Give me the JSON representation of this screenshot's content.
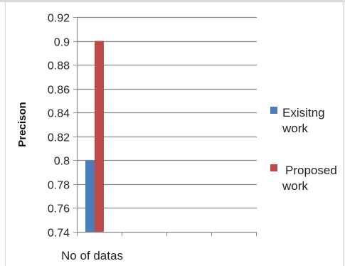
{
  "chart_data": {
    "type": "bar",
    "categories": [
      ""
    ],
    "series": [
      {
        "name": "Exisitng work",
        "name_lines": [
          "Exisitng",
          "work"
        ],
        "values": [
          0.8
        ],
        "color": "#4a7ebb"
      },
      {
        "name": "Proposed work",
        "name_lines": [
          "Proposed",
          "work"
        ],
        "values": [
          0.9
        ],
        "color": "#be4b48"
      }
    ],
    "xlabel": "No of datas",
    "ylabel": "Precison",
    "ylim": [
      0.74,
      0.92
    ],
    "yticks": [
      "0.92",
      "0.9",
      "0.88",
      "0.86",
      "0.84",
      "0.82",
      "0.8",
      "0.78",
      "0.76",
      "0.74"
    ],
    "grid": true,
    "legend": "right"
  }
}
